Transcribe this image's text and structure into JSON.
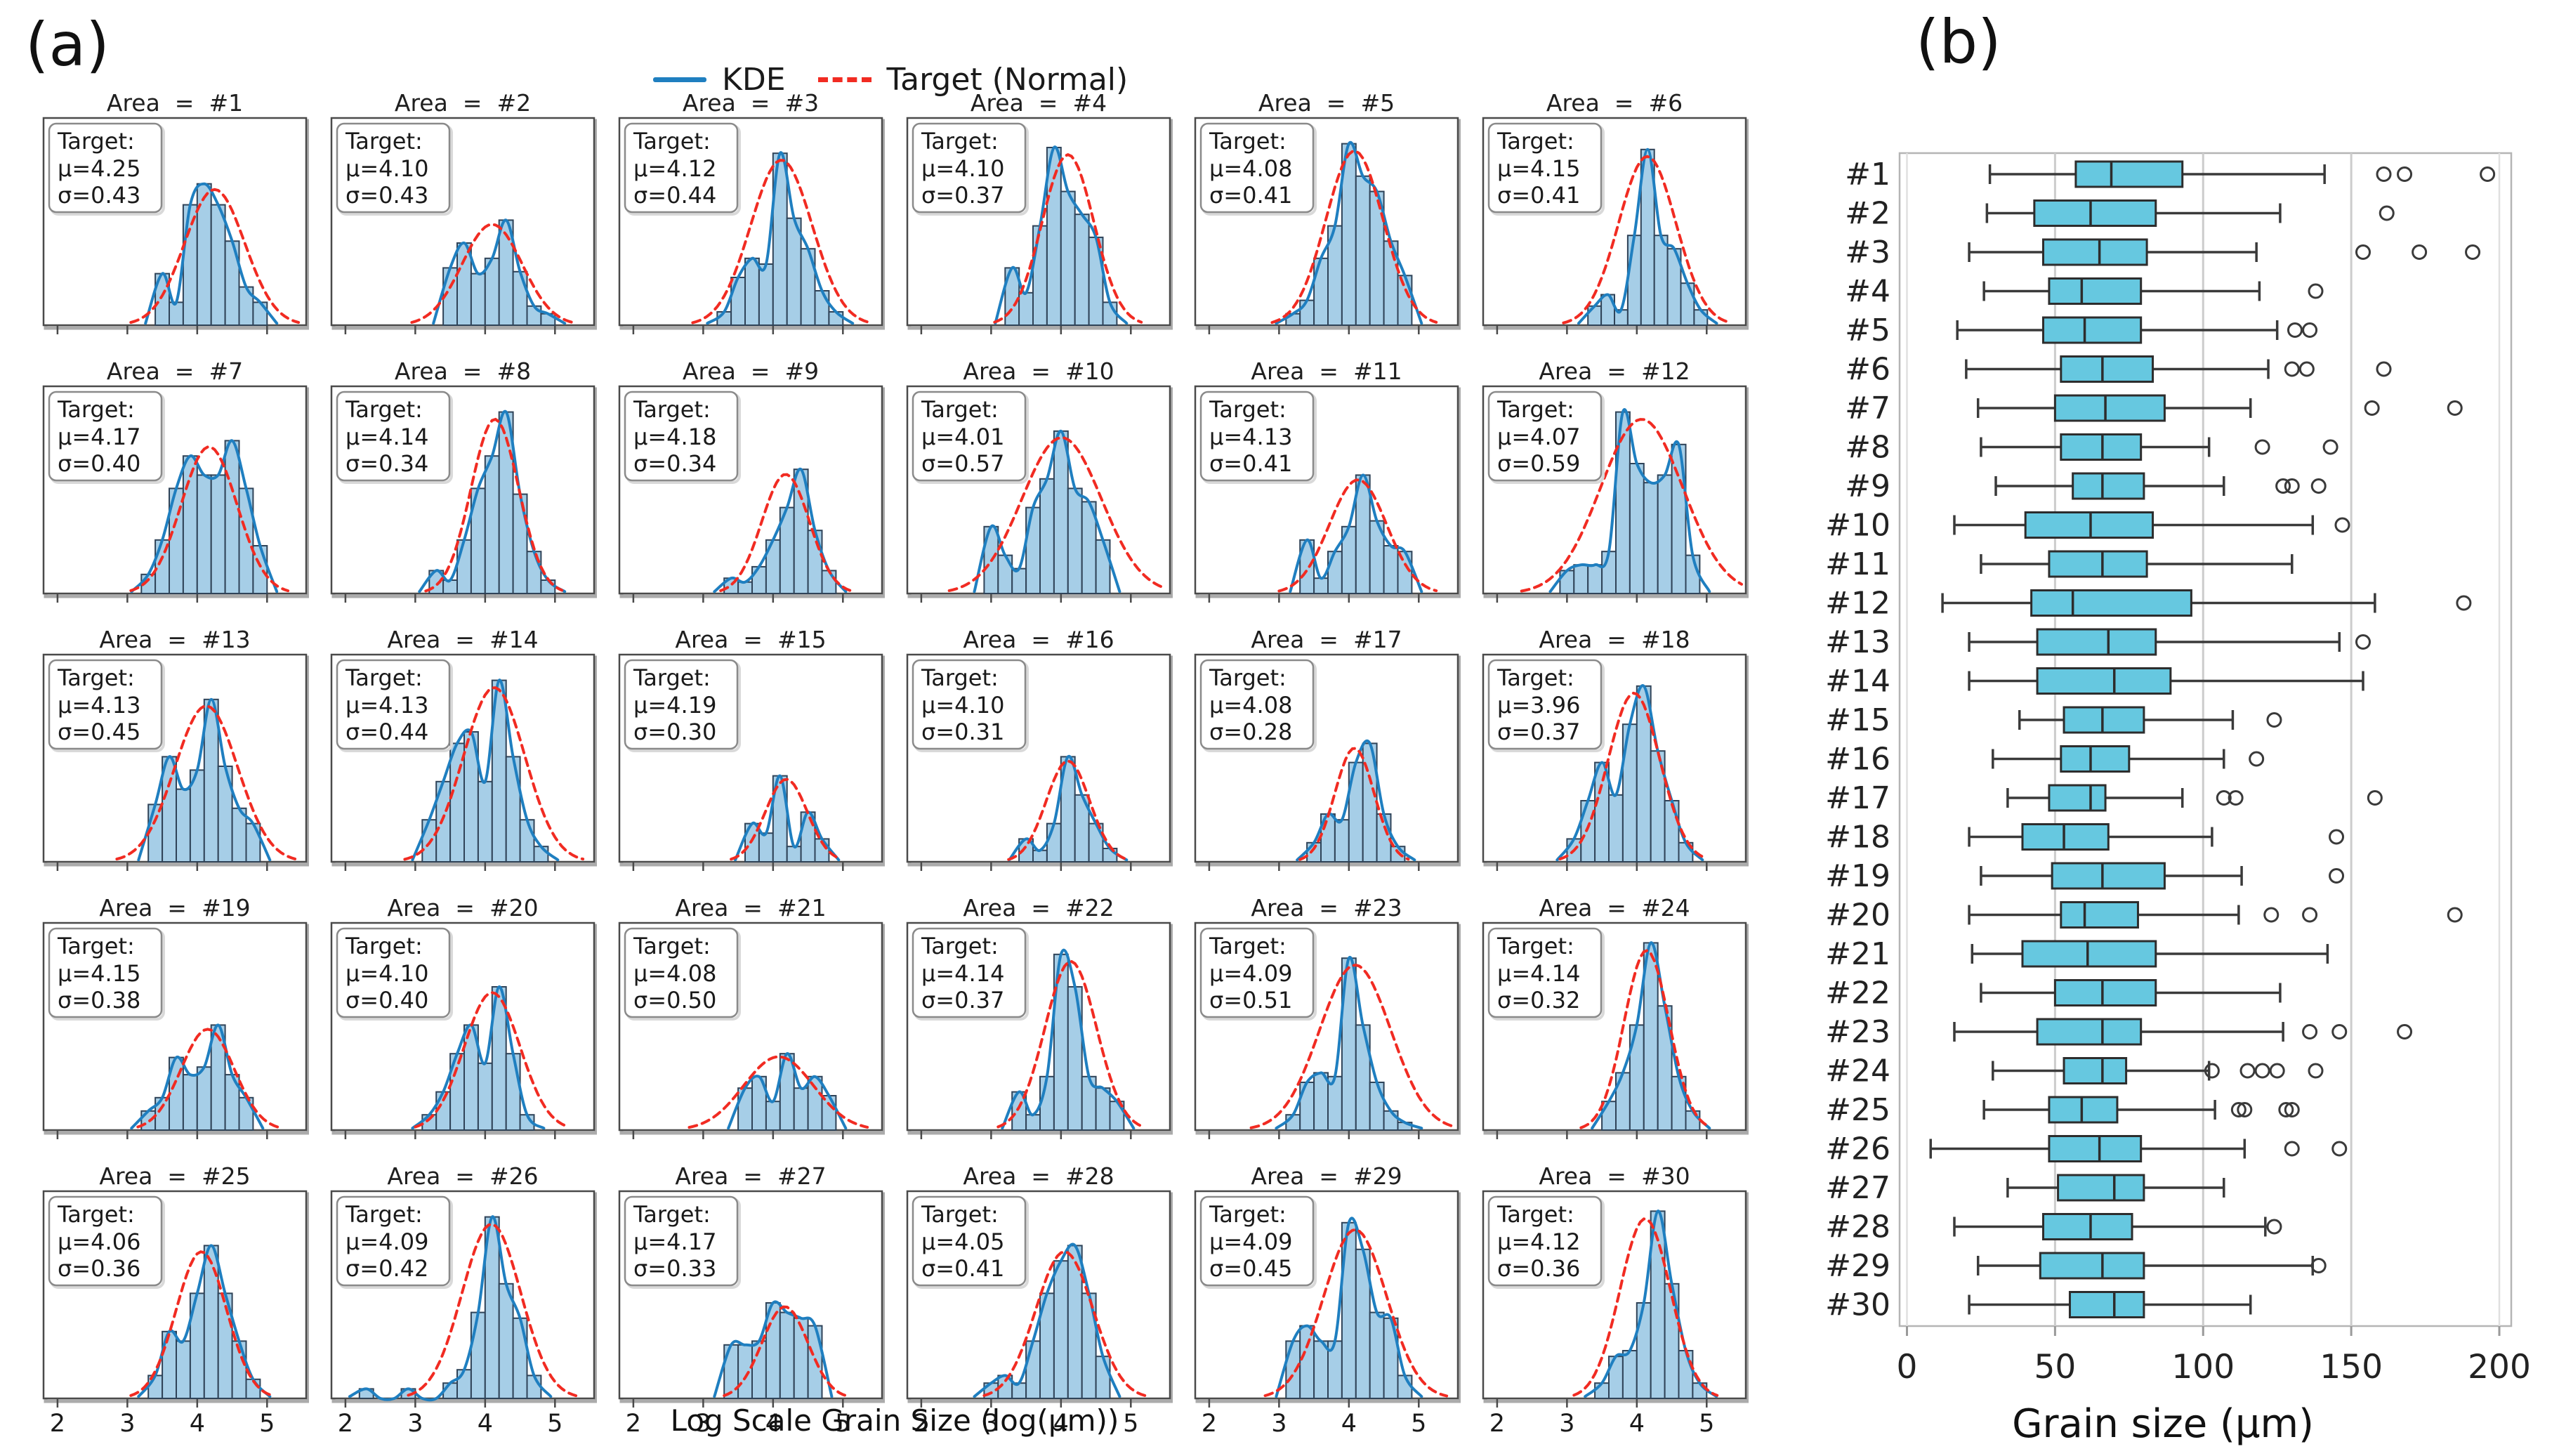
{
  "page": {
    "panel_a_label": "(a)",
    "panel_b_label": "(b)"
  },
  "colors": {
    "hist_fill": "#a6cee7",
    "hist_edge": "#2f4358",
    "kde_line": "#1f7fc0",
    "target_line": "#f12b22",
    "box_fill": "#66c8e0",
    "box_edge": "#2d2d2d",
    "whisker": "#3a3a3a",
    "gridline": "#cccccc",
    "spine": "#b5b5b5",
    "frame": "#4a4a4a",
    "frame_shadow": "#ababab",
    "annotation_border": "#8a8a8a",
    "text": "#1a1a1a"
  },
  "chart_data": [
    {
      "type": "bar",
      "subtype": "histogram_grid_with_kde",
      "xlabel": "Log Scale Grain Size (log(μm))",
      "x_ticks": [
        2,
        3,
        4,
        5
      ],
      "x_range": [
        1.8,
        5.56
      ],
      "grid": "off",
      "legend_position": "top-center",
      "legend": [
        {
          "label": "KDE",
          "style": "solid",
          "color": "#1f7fc0"
        },
        {
          "label": "Target (Normal)",
          "style": "dashed",
          "color": "#f12b22"
        }
      ],
      "annotation": {
        "title": "Target:",
        "mu_prefix": "μ=",
        "sigma_prefix": "σ="
      },
      "areas": [
        {
          "title": "Area = #1",
          "mu": "4.25",
          "sigma": "0.43",
          "bin_start": 3.4,
          "bin_width": 0.2,
          "heights": [
            0.27,
            0.12,
            0.63,
            0.74,
            0.63,
            0.44,
            0.2,
            0.12
          ]
        },
        {
          "title": "Area = #2",
          "mu": "4.10",
          "sigma": "0.43",
          "bin_start": 3.4,
          "bin_width": 0.2,
          "heights": [
            0.3,
            0.43,
            0.27,
            0.35,
            0.55,
            0.28,
            0.1,
            0.06
          ]
        },
        {
          "title": "Area = #3",
          "mu": "4.12",
          "sigma": "0.44",
          "bin_start": 3.2,
          "bin_width": 0.2,
          "heights": [
            0.07,
            0.25,
            0.35,
            0.32,
            0.9,
            0.56,
            0.4,
            0.18,
            0.07
          ]
        },
        {
          "title": "Area = #4",
          "mu": "4.10",
          "sigma": "0.37",
          "bin_start": 3.2,
          "bin_width": 0.2,
          "heights": [
            0.3,
            0.17,
            0.52,
            0.93,
            0.7,
            0.58,
            0.46,
            0.12
          ]
        },
        {
          "title": "Area = #5",
          "mu": "4.08",
          "sigma": "0.41",
          "bin_start": 3.1,
          "bin_width": 0.2,
          "heights": [
            0.06,
            0.13,
            0.35,
            0.52,
            0.95,
            0.78,
            0.7,
            0.44,
            0.26
          ]
        },
        {
          "title": "Area = #6",
          "mu": "4.15",
          "sigma": "0.41",
          "bin_start": 3.3,
          "bin_width": 0.19,
          "heights": [
            0.1,
            0.16,
            0.08,
            0.47,
            0.92,
            0.47,
            0.4,
            0.22,
            0.08
          ]
        },
        {
          "title": "Area = #7",
          "mu": "4.17",
          "sigma": "0.40",
          "bin_start": 3.2,
          "bin_width": 0.2,
          "heights": [
            0.1,
            0.28,
            0.55,
            0.72,
            0.62,
            0.62,
            0.8,
            0.55,
            0.25
          ]
        },
        {
          "title": "Area = #8",
          "mu": "4.14",
          "sigma": "0.34",
          "bin_start": 3.2,
          "bin_width": 0.2,
          "heights": [
            0.12,
            0.07,
            0.28,
            0.55,
            0.72,
            0.95,
            0.52,
            0.22,
            0.07
          ]
        },
        {
          "title": "Area = #9",
          "mu": "4.18",
          "sigma": "0.34",
          "bin_start": 3.3,
          "bin_width": 0.2,
          "heights": [
            0.08,
            0.06,
            0.14,
            0.28,
            0.45,
            0.65,
            0.33,
            0.12
          ]
        },
        {
          "title": "Area = #10",
          "mu": "4.01",
          "sigma": "0.57",
          "bin_start": 2.9,
          "bin_width": 0.2,
          "heights": [
            0.35,
            0.2,
            0.13,
            0.45,
            0.6,
            0.85,
            0.55,
            0.48,
            0.28
          ]
        },
        {
          "title": "Area = #11",
          "mu": "4.13",
          "sigma": "0.41",
          "bin_start": 3.3,
          "bin_width": 0.2,
          "heights": [
            0.28,
            0.08,
            0.22,
            0.35,
            0.62,
            0.38,
            0.25,
            0.22
          ]
        },
        {
          "title": "Area = #12",
          "mu": "4.07",
          "sigma": "0.59",
          "bin_start": 2.9,
          "bin_width": 0.2,
          "heights": [
            0.12,
            0.15,
            0.15,
            0.22,
            0.95,
            0.68,
            0.58,
            0.62,
            0.78,
            0.2
          ]
        },
        {
          "title": "Area = #13",
          "mu": "4.13",
          "sigma": "0.45",
          "bin_start": 3.3,
          "bin_width": 0.2,
          "heights": [
            0.3,
            0.55,
            0.38,
            0.48,
            0.85,
            0.5,
            0.28,
            0.2
          ]
        },
        {
          "title": "Area = #14",
          "mu": "4.13",
          "sigma": "0.44",
          "bin_start": 3.1,
          "bin_width": 0.2,
          "heights": [
            0.22,
            0.42,
            0.62,
            0.68,
            0.42,
            0.95,
            0.55,
            0.22,
            0.08
          ]
        },
        {
          "title": "Area = #15",
          "mu": "4.19",
          "sigma": "0.30",
          "bin_start": 3.6,
          "bin_width": 0.2,
          "heights": [
            0.2,
            0.15,
            0.45,
            0.08,
            0.26,
            0.12
          ]
        },
        {
          "title": "Area = #16",
          "mu": "4.10",
          "sigma": "0.31",
          "bin_start": 3.4,
          "bin_width": 0.2,
          "heights": [
            0.12,
            0.06,
            0.2,
            0.55,
            0.35,
            0.2,
            0.07
          ]
        },
        {
          "title": "Area = #17",
          "mu": "4.08",
          "sigma": "0.28",
          "bin_start": 3.4,
          "bin_width": 0.2,
          "heights": [
            0.1,
            0.25,
            0.22,
            0.52,
            0.62,
            0.25,
            0.08
          ]
        },
        {
          "title": "Area = #18",
          "mu": "3.96",
          "sigma": "0.37",
          "bin_start": 3.0,
          "bin_width": 0.2,
          "heights": [
            0.12,
            0.32,
            0.52,
            0.35,
            0.72,
            0.92,
            0.58,
            0.32,
            0.1
          ]
        },
        {
          "title": "Area = #19",
          "mu": "4.15",
          "sigma": "0.38",
          "bin_start": 3.2,
          "bin_width": 0.2,
          "heights": [
            0.1,
            0.17,
            0.38,
            0.29,
            0.33,
            0.55,
            0.29,
            0.17
          ]
        },
        {
          "title": "Area = #20",
          "mu": "4.10",
          "sigma": "0.40",
          "bin_start": 3.1,
          "bin_width": 0.2,
          "heights": [
            0.08,
            0.2,
            0.4,
            0.55,
            0.35,
            0.75,
            0.4,
            0.08
          ]
        },
        {
          "title": "Area = #21",
          "mu": "4.08",
          "sigma": "0.50",
          "bin_start": 3.5,
          "bin_width": 0.2,
          "heights": [
            0.22,
            0.28,
            0.15,
            0.4,
            0.22,
            0.28,
            0.18
          ]
        },
        {
          "title": "Area = #22",
          "mu": "4.14",
          "sigma": "0.37",
          "bin_start": 3.3,
          "bin_width": 0.2,
          "heights": [
            0.2,
            0.08,
            0.28,
            0.92,
            0.75,
            0.28,
            0.22,
            0.15
          ]
        },
        {
          "title": "Area = #23",
          "mu": "4.09",
          "sigma": "0.51",
          "bin_start": 3.1,
          "bin_width": 0.2,
          "heights": [
            0.08,
            0.25,
            0.3,
            0.28,
            0.9,
            0.55,
            0.25,
            0.1,
            0.04
          ]
        },
        {
          "title": "Area = #24",
          "mu": "4.14",
          "sigma": "0.32",
          "bin_start": 3.5,
          "bin_width": 0.2,
          "heights": [
            0.15,
            0.3,
            0.55,
            0.98,
            0.65,
            0.28,
            0.1
          ]
        },
        {
          "title": "Area = #25",
          "mu": "4.06",
          "sigma": "0.36",
          "bin_start": 3.3,
          "bin_width": 0.2,
          "heights": [
            0.12,
            0.35,
            0.3,
            0.55,
            0.8,
            0.55,
            0.3,
            0.1
          ]
        },
        {
          "title": "Area = #26",
          "mu": "4.09",
          "sigma": "0.42",
          "bin_start": 2.2,
          "bin_width": 0.2,
          "heights": [
            0.05,
            0,
            0,
            0.05,
            0,
            0,
            0.08,
            0.15,
            0.45,
            0.95,
            0.6,
            0.42,
            0.12
          ]
        },
        {
          "title": "Area = #27",
          "mu": "4.17",
          "sigma": "0.33",
          "bin_start": 3.3,
          "bin_width": 0.2,
          "heights": [
            0.28,
            0.28,
            0.3,
            0.5,
            0.45,
            0.42,
            0.38
          ]
        },
        {
          "title": "Area = #28",
          "mu": "4.05",
          "sigma": "0.41",
          "bin_start": 2.9,
          "bin_width": 0.2,
          "heights": [
            0.08,
            0.12,
            0.08,
            0.3,
            0.55,
            0.72,
            0.8,
            0.55,
            0.22
          ]
        },
        {
          "title": "Area = #29",
          "mu": "4.09",
          "sigma": "0.45",
          "bin_start": 3.1,
          "bin_width": 0.2,
          "heights": [
            0.3,
            0.38,
            0.3,
            0.3,
            0.92,
            0.78,
            0.45,
            0.42,
            0.12
          ]
        },
        {
          "title": "Area = #30",
          "mu": "4.12",
          "sigma": "0.36",
          "bin_start": 3.4,
          "bin_width": 0.2,
          "heights": [
            0.08,
            0.22,
            0.25,
            0.5,
            0.98,
            0.6,
            0.25,
            0.08
          ]
        }
      ]
    },
    {
      "type": "boxplot",
      "orientation": "horizontal",
      "xlabel": "Grain size (μm)",
      "x_ticks": [
        0,
        50,
        100,
        150,
        200
      ],
      "x_range": [
        0,
        200
      ],
      "grid": "vertical",
      "rows": [
        {
          "label": "#1",
          "whisker_low": 28,
          "q1": 57,
          "median": 69,
          "q3": 93,
          "whisker_high": 141,
          "outliers": [
            161,
            168,
            196
          ]
        },
        {
          "label": "#2",
          "whisker_low": 27,
          "q1": 43,
          "median": 62,
          "q3": 84,
          "whisker_high": 126,
          "outliers": [
            162
          ]
        },
        {
          "label": "#3",
          "whisker_low": 21,
          "q1": 46,
          "median": 65,
          "q3": 81,
          "whisker_high": 118,
          "outliers": [
            154,
            173,
            191
          ]
        },
        {
          "label": "#4",
          "whisker_low": 26,
          "q1": 48,
          "median": 59,
          "q3": 79,
          "whisker_high": 119,
          "outliers": [
            138
          ]
        },
        {
          "label": "#5",
          "whisker_low": 17,
          "q1": 46,
          "median": 60,
          "q3": 79,
          "whisker_high": 125,
          "outliers": [
            131,
            136
          ]
        },
        {
          "label": "#6",
          "whisker_low": 20,
          "q1": 52,
          "median": 66,
          "q3": 83,
          "whisker_high": 122,
          "outliers": [
            130,
            135,
            161
          ]
        },
        {
          "label": "#7",
          "whisker_low": 24,
          "q1": 50,
          "median": 67,
          "q3": 87,
          "whisker_high": 116,
          "outliers": [
            157,
            185
          ]
        },
        {
          "label": "#8",
          "whisker_low": 25,
          "q1": 52,
          "median": 66,
          "q3": 79,
          "whisker_high": 102,
          "outliers": [
            120,
            143
          ]
        },
        {
          "label": "#9",
          "whisker_low": 30,
          "q1": 56,
          "median": 66,
          "q3": 80,
          "whisker_high": 107,
          "outliers": [
            127,
            130,
            139
          ]
        },
        {
          "label": "#10",
          "whisker_low": 16,
          "q1": 40,
          "median": 62,
          "q3": 83,
          "whisker_high": 137,
          "outliers": [
            147
          ]
        },
        {
          "label": "#11",
          "whisker_low": 25,
          "q1": 48,
          "median": 66,
          "q3": 81,
          "whisker_high": 130,
          "outliers": []
        },
        {
          "label": "#12",
          "whisker_low": 12,
          "q1": 42,
          "median": 56,
          "q3": 96,
          "whisker_high": 158,
          "outliers": [
            188
          ]
        },
        {
          "label": "#13",
          "whisker_low": 21,
          "q1": 44,
          "median": 68,
          "q3": 84,
          "whisker_high": 146,
          "outliers": [
            154
          ]
        },
        {
          "label": "#14",
          "whisker_low": 21,
          "q1": 44,
          "median": 70,
          "q3": 89,
          "whisker_high": 154,
          "outliers": []
        },
        {
          "label": "#15",
          "whisker_low": 38,
          "q1": 53,
          "median": 66,
          "q3": 80,
          "whisker_high": 110,
          "outliers": [
            124
          ]
        },
        {
          "label": "#16",
          "whisker_low": 29,
          "q1": 52,
          "median": 62,
          "q3": 75,
          "whisker_high": 107,
          "outliers": [
            118
          ]
        },
        {
          "label": "#17",
          "whisker_low": 34,
          "q1": 48,
          "median": 62,
          "q3": 67,
          "whisker_high": 93,
          "outliers": [
            107,
            111,
            158
          ]
        },
        {
          "label": "#18",
          "whisker_low": 21,
          "q1": 39,
          "median": 53,
          "q3": 68,
          "whisker_high": 103,
          "outliers": [
            145
          ]
        },
        {
          "label": "#19",
          "whisker_low": 25,
          "q1": 49,
          "median": 66,
          "q3": 87,
          "whisker_high": 113,
          "outliers": [
            145
          ]
        },
        {
          "label": "#20",
          "whisker_low": 21,
          "q1": 52,
          "median": 60,
          "q3": 78,
          "whisker_high": 112,
          "outliers": [
            123,
            136,
            185
          ]
        },
        {
          "label": "#21",
          "whisker_low": 22,
          "q1": 39,
          "median": 61,
          "q3": 84,
          "whisker_high": 142,
          "outliers": []
        },
        {
          "label": "#22",
          "whisker_low": 25,
          "q1": 50,
          "median": 66,
          "q3": 84,
          "whisker_high": 126,
          "outliers": []
        },
        {
          "label": "#23",
          "whisker_low": 16,
          "q1": 44,
          "median": 66,
          "q3": 79,
          "whisker_high": 127,
          "outliers": [
            136,
            146,
            168
          ]
        },
        {
          "label": "#24",
          "whisker_low": 29,
          "q1": 53,
          "median": 66,
          "q3": 74,
          "whisker_high": 102,
          "outliers": [
            103,
            115,
            120,
            125,
            138
          ]
        },
        {
          "label": "#25",
          "whisker_low": 26,
          "q1": 48,
          "median": 59,
          "q3": 71,
          "whisker_high": 104,
          "outliers": [
            112,
            114,
            128,
            130
          ]
        },
        {
          "label": "#26",
          "whisker_low": 8,
          "q1": 48,
          "median": 65,
          "q3": 79,
          "whisker_high": 114,
          "outliers": [
            130,
            146
          ]
        },
        {
          "label": "#27",
          "whisker_low": 34,
          "q1": 51,
          "median": 70,
          "q3": 80,
          "whisker_high": 107,
          "outliers": []
        },
        {
          "label": "#28",
          "whisker_low": 16,
          "q1": 46,
          "median": 62,
          "q3": 76,
          "whisker_high": 121,
          "outliers": [
            124
          ]
        },
        {
          "label": "#29",
          "whisker_low": 24,
          "q1": 45,
          "median": 66,
          "q3": 80,
          "whisker_high": 137,
          "outliers": [
            139
          ]
        },
        {
          "label": "#30",
          "whisker_low": 21,
          "q1": 55,
          "median": 70,
          "q3": 80,
          "whisker_high": 116,
          "outliers": []
        }
      ]
    }
  ]
}
